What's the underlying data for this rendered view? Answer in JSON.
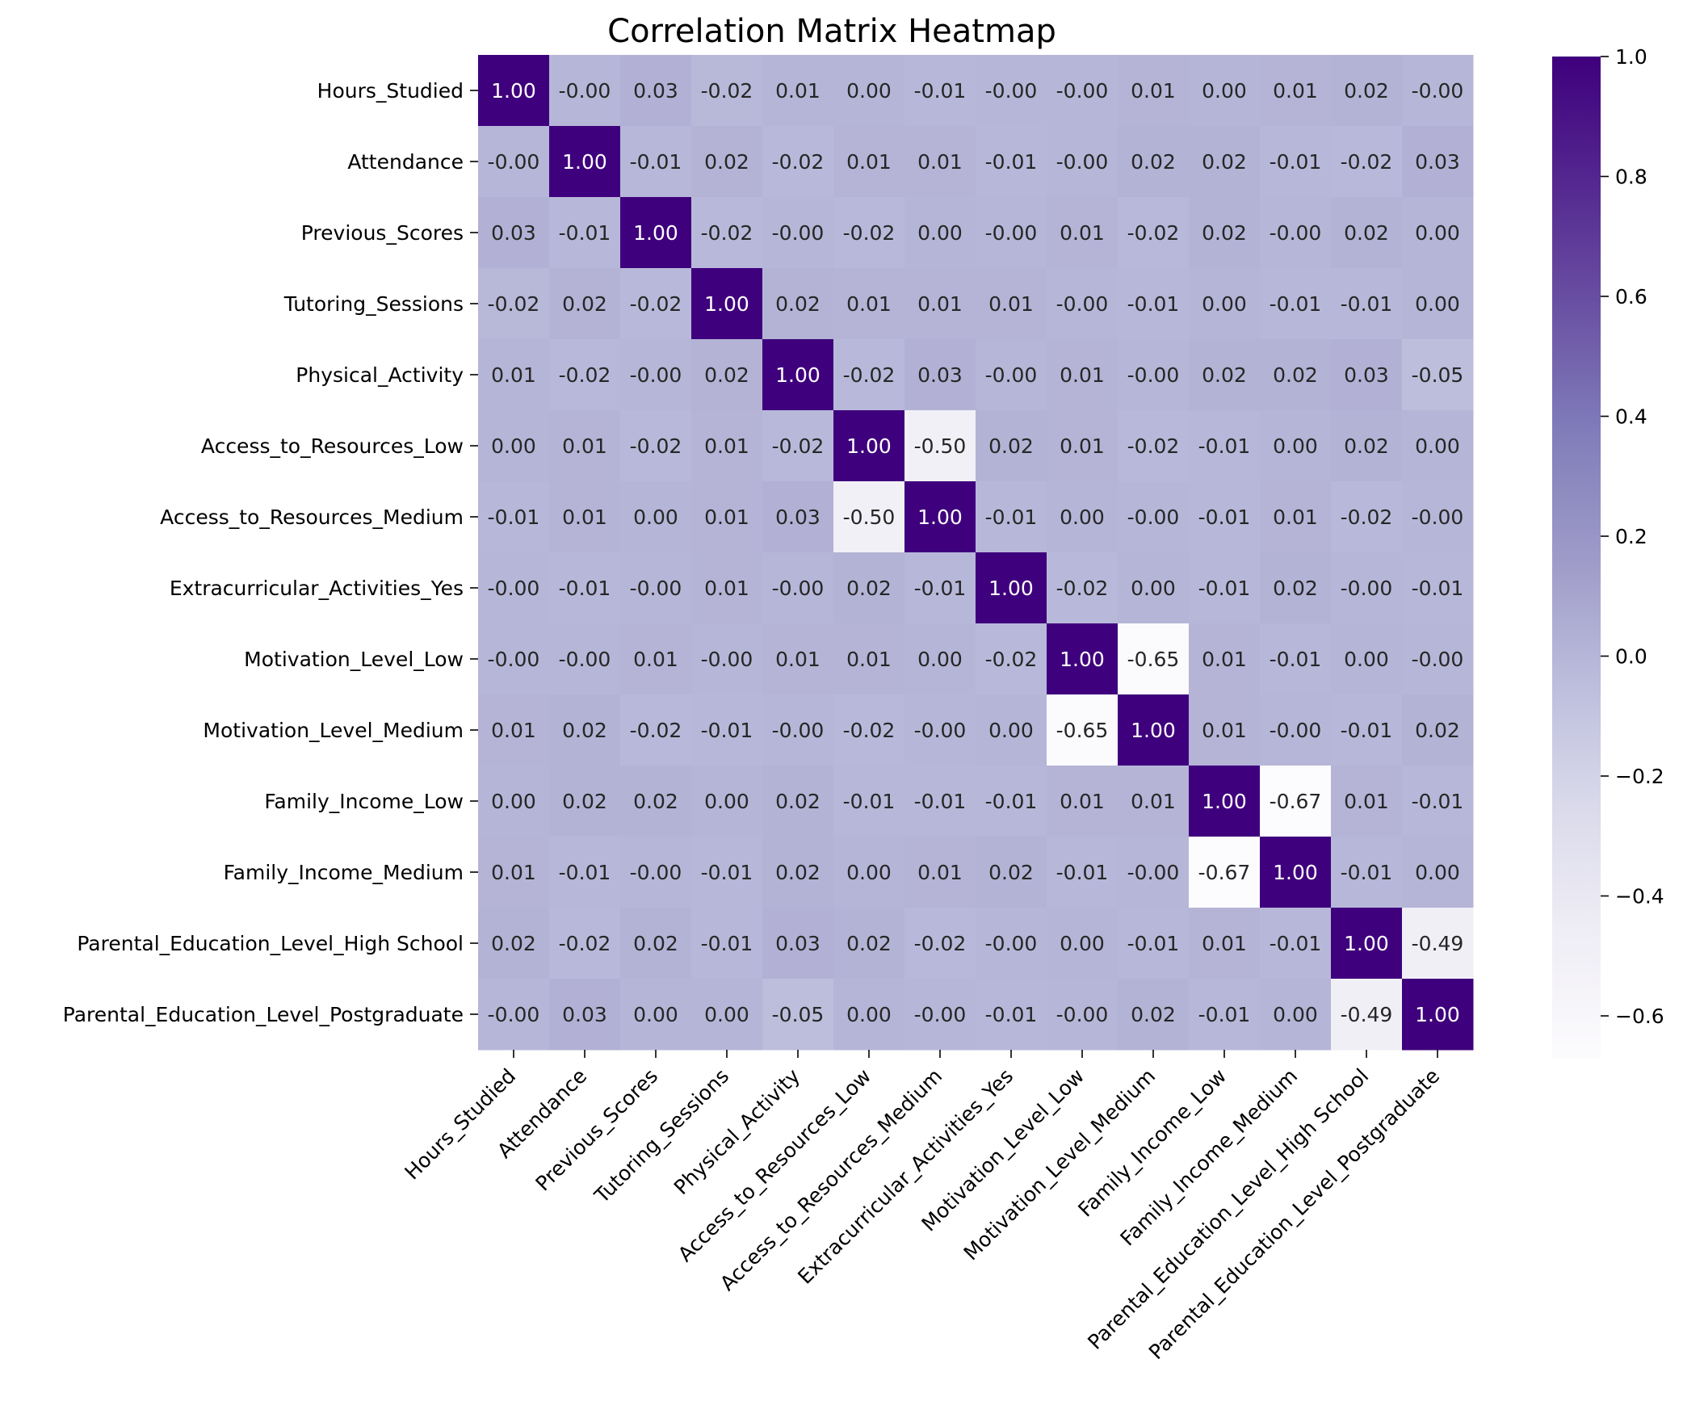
{
  "chart_data": {
    "type": "heatmap",
    "title": "Correlation Matrix Heatmap",
    "xlabel": "",
    "ylabel": "",
    "labels": [
      "Hours_Studied",
      "Attendance",
      "Previous_Scores",
      "Tutoring_Sessions",
      "Physical_Activity",
      "Access_to_Resources_Low",
      "Access_to_Resources_Medium",
      "Extracurricular_Activities_Yes",
      "Motivation_Level_Low",
      "Motivation_Level_Medium",
      "Family_Income_Low",
      "Family_Income_Medium",
      "Parental_Education_Level_High School",
      "Parental_Education_Level_Postgraduate"
    ],
    "cell_labels": [
      [
        "1.00",
        "-0.00",
        "0.03",
        "-0.02",
        "0.01",
        "0.00",
        "-0.01",
        "-0.00",
        "-0.00",
        "0.01",
        "0.00",
        "0.01",
        "0.02",
        "-0.00"
      ],
      [
        "-0.00",
        "1.00",
        "-0.01",
        "0.02",
        "-0.02",
        "0.01",
        "0.01",
        "-0.01",
        "-0.00",
        "0.02",
        "0.02",
        "-0.01",
        "-0.02",
        "0.03"
      ],
      [
        "0.03",
        "-0.01",
        "1.00",
        "-0.02",
        "-0.00",
        "-0.02",
        "0.00",
        "-0.00",
        "0.01",
        "-0.02",
        "0.02",
        "-0.00",
        "0.02",
        "0.00"
      ],
      [
        "-0.02",
        "0.02",
        "-0.02",
        "1.00",
        "0.02",
        "0.01",
        "0.01",
        "0.01",
        "-0.00",
        "-0.01",
        "0.00",
        "-0.01",
        "-0.01",
        "0.00"
      ],
      [
        "0.01",
        "-0.02",
        "-0.00",
        "0.02",
        "1.00",
        "-0.02",
        "0.03",
        "-0.00",
        "0.01",
        "-0.00",
        "0.02",
        "0.02",
        "0.03",
        "-0.05"
      ],
      [
        "0.00",
        "0.01",
        "-0.02",
        "0.01",
        "-0.02",
        "1.00",
        "-0.50",
        "0.02",
        "0.01",
        "-0.02",
        "-0.01",
        "0.00",
        "0.02",
        "0.00"
      ],
      [
        "-0.01",
        "0.01",
        "0.00",
        "0.01",
        "0.03",
        "-0.50",
        "1.00",
        "-0.01",
        "0.00",
        "-0.00",
        "-0.01",
        "0.01",
        "-0.02",
        "-0.00"
      ],
      [
        "-0.00",
        "-0.01",
        "-0.00",
        "0.01",
        "-0.00",
        "0.02",
        "-0.01",
        "1.00",
        "-0.02",
        "0.00",
        "-0.01",
        "0.02",
        "-0.00",
        "-0.01"
      ],
      [
        "-0.00",
        "-0.00",
        "0.01",
        "-0.00",
        "0.01",
        "0.01",
        "0.00",
        "-0.02",
        "1.00",
        "-0.65",
        "0.01",
        "-0.01",
        "0.00",
        "-0.00"
      ],
      [
        "0.01",
        "0.02",
        "-0.02",
        "-0.01",
        "-0.00",
        "-0.02",
        "-0.00",
        "0.00",
        "-0.65",
        "1.00",
        "0.01",
        "-0.00",
        "-0.01",
        "0.02"
      ],
      [
        "0.00",
        "0.02",
        "0.02",
        "0.00",
        "0.02",
        "-0.01",
        "-0.01",
        "-0.01",
        "0.01",
        "0.01",
        "1.00",
        "-0.67",
        "0.01",
        "-0.01"
      ],
      [
        "0.01",
        "-0.01",
        "-0.00",
        "-0.01",
        "0.02",
        "0.00",
        "0.01",
        "0.02",
        "-0.01",
        "-0.00",
        "-0.67",
        "1.00",
        "-0.01",
        "0.00"
      ],
      [
        "0.02",
        "-0.02",
        "0.02",
        "-0.01",
        "0.03",
        "0.02",
        "-0.02",
        "-0.00",
        "0.00",
        "-0.01",
        "0.01",
        "-0.01",
        "1.00",
        "-0.49"
      ],
      [
        "-0.00",
        "0.03",
        "0.00",
        "0.00",
        "-0.05",
        "0.00",
        "-0.00",
        "-0.01",
        "-0.00",
        "0.02",
        "-0.01",
        "0.00",
        "-0.49",
        "1.00"
      ]
    ],
    "values": [
      [
        1.0,
        -0.001,
        0.025,
        -0.015,
        0.005,
        0.002,
        -0.008,
        -0.002,
        -0.002,
        0.008,
        0.002,
        0.008,
        0.018,
        -0.002
      ],
      [
        -0.001,
        1.0,
        -0.008,
        0.015,
        -0.018,
        0.008,
        0.008,
        -0.008,
        -0.002,
        0.018,
        0.018,
        -0.008,
        -0.018,
        0.025
      ],
      [
        0.025,
        -0.008,
        1.0,
        -0.018,
        -0.002,
        -0.018,
        0.002,
        -0.002,
        0.008,
        -0.018,
        0.018,
        -0.002,
        0.018,
        0.002
      ],
      [
        -0.015,
        0.015,
        -0.018,
        1.0,
        0.015,
        0.008,
        0.008,
        0.008,
        -0.002,
        -0.008,
        0.002,
        -0.008,
        -0.008,
        0.002
      ],
      [
        0.005,
        -0.018,
        -0.002,
        0.015,
        1.0,
        -0.018,
        0.025,
        -0.002,
        0.008,
        -0.002,
        0.018,
        0.018,
        0.025,
        -0.05
      ],
      [
        0.002,
        0.008,
        -0.018,
        0.008,
        -0.018,
        1.0,
        -0.5,
        0.018,
        0.008,
        -0.018,
        -0.008,
        0.002,
        0.018,
        0.002
      ],
      [
        -0.008,
        0.008,
        0.002,
        0.008,
        0.025,
        -0.5,
        1.0,
        -0.008,
        0.002,
        -0.002,
        -0.008,
        0.008,
        -0.018,
        -0.002
      ],
      [
        -0.002,
        -0.008,
        -0.002,
        0.008,
        -0.002,
        0.018,
        -0.008,
        1.0,
        -0.018,
        0.002,
        -0.008,
        0.018,
        -0.002,
        -0.008
      ],
      [
        -0.002,
        -0.002,
        0.008,
        -0.002,
        0.008,
        0.008,
        0.002,
        -0.018,
        1.0,
        -0.65,
        0.008,
        -0.008,
        0.002,
        -0.002
      ],
      [
        0.008,
        0.018,
        -0.018,
        -0.008,
        -0.002,
        -0.018,
        -0.002,
        0.002,
        -0.65,
        1.0,
        0.008,
        -0.002,
        -0.008,
        0.018
      ],
      [
        0.002,
        0.018,
        0.018,
        0.002,
        0.018,
        -0.008,
        -0.008,
        -0.008,
        0.008,
        0.008,
        1.0,
        -0.67,
        0.008,
        -0.008
      ],
      [
        0.008,
        -0.008,
        -0.002,
        -0.008,
        0.018,
        0.002,
        0.008,
        0.018,
        -0.008,
        -0.002,
        -0.67,
        1.0,
        -0.008,
        0.002
      ],
      [
        0.018,
        -0.018,
        0.018,
        -0.008,
        0.025,
        0.018,
        -0.018,
        -0.002,
        0.002,
        -0.008,
        0.008,
        -0.008,
        1.0,
        -0.49
      ],
      [
        -0.002,
        0.025,
        0.002,
        0.002,
        -0.05,
        0.002,
        -0.002,
        -0.008,
        -0.002,
        0.018,
        -0.008,
        0.002,
        -0.49,
        1.0
      ]
    ],
    "colorscale": "Purples",
    "vmin": -0.67,
    "vmax": 1.0,
    "colorbar_ticks": [
      "1.0",
      "0.8",
      "0.6",
      "0.4",
      "0.2",
      "0.0",
      "−0.2",
      "−0.4",
      "−0.6"
    ],
    "colorbar_tick_values": [
      1.0,
      0.8,
      0.6,
      0.4,
      0.2,
      0.0,
      -0.2,
      -0.4,
      -0.6
    ]
  }
}
